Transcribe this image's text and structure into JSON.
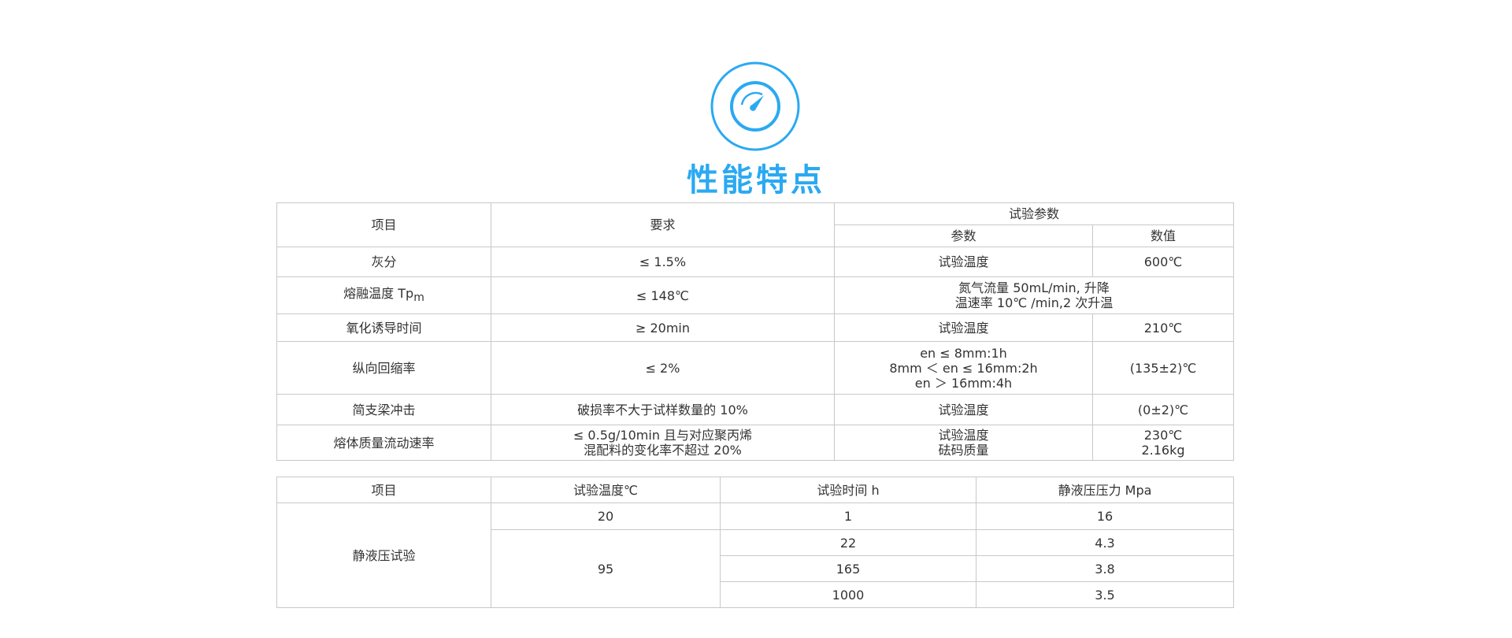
{
  "header": {
    "title": "性能特点",
    "icon": "speedometer-icon",
    "accent_color": "#2aa9f2"
  },
  "table1": {
    "headers": {
      "item": "项目",
      "requirement": "要求",
      "test_params": "试验参数",
      "param": "参数",
      "value": "数值"
    },
    "rows": [
      {
        "item": "灰分",
        "requirement": "≤ 1.5%",
        "param": "试验温度",
        "value": "600℃"
      },
      {
        "item": "熔融温度 Tp",
        "item_sub": "m",
        "requirement": "≤ 148℃",
        "param_line1": "氮气流量 50mL/min, 升降",
        "param_line2": "温速率 10℃ /min,2 次升温"
      },
      {
        "item": "氧化诱导时间",
        "requirement": "≥ 20min",
        "param": "试验温度",
        "value": "210℃"
      },
      {
        "item": "纵向回缩率",
        "requirement": "≤ 2%",
        "param_line1": "en ≤ 8mm:1h",
        "param_line2": "8mm ＜ en ≤ 16mm:2h",
        "param_line3": "en ＞ 16mm:4h",
        "value": "(135±2)℃"
      },
      {
        "item": "简支梁冲击",
        "requirement": "破损率不大于试样数量的 10%",
        "param": "试验温度",
        "value": "(0±2)℃"
      },
      {
        "item": "熔体质量流动速率",
        "requirement_line1": "≤ 0.5g/10min 且与对应聚丙烯",
        "requirement_line2": "混配料的变化率不超过 20%",
        "param_line1": "试验温度",
        "param_line2": "砝码质量",
        "value_line1": "230℃",
        "value_line2": "2.16kg"
      }
    ]
  },
  "table2": {
    "headers": [
      "项目",
      "试验温度℃",
      "试验时间 h",
      "静液压压力 Mpa"
    ],
    "item": "静液压试验",
    "rows": [
      {
        "temp": "20",
        "time": "1",
        "pressure": "16"
      },
      {
        "temp": "95",
        "time": "22",
        "pressure": "4.3"
      },
      {
        "time": "165",
        "pressure": "3.8"
      },
      {
        "time": "1000",
        "pressure": "3.5"
      }
    ]
  }
}
